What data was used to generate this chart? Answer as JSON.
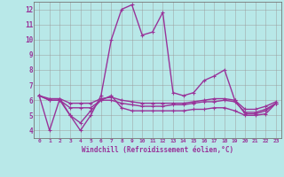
{
  "xlabel": "Windchill (Refroidissement éolien,°C)",
  "bg_color": "#b8e8e8",
  "line_color": "#993399",
  "xlim": [
    -0.5,
    23.5
  ],
  "ylim": [
    3.5,
    12.5
  ],
  "xticks": [
    0,
    1,
    2,
    3,
    4,
    5,
    6,
    7,
    8,
    9,
    10,
    11,
    12,
    13,
    14,
    15,
    16,
    17,
    18,
    19,
    20,
    21,
    22,
    23
  ],
  "yticks": [
    4,
    5,
    6,
    7,
    8,
    9,
    10,
    11,
    12
  ],
  "lines": [
    {
      "x": [
        0,
        1,
        2,
        3,
        4,
        5,
        6,
        7,
        8,
        9,
        10,
        11,
        12,
        13,
        14,
        15,
        16,
        17,
        18,
        19,
        20,
        21,
        22,
        23
      ],
      "y": [
        6.3,
        4.0,
        6.1,
        5.0,
        4.0,
        5.0,
        6.3,
        10.0,
        12.0,
        12.3,
        10.3,
        10.5,
        11.8,
        6.5,
        6.3,
        6.5,
        7.3,
        7.6,
        8.0,
        6.0,
        5.1,
        5.1,
        5.3,
        5.8
      ]
    },
    {
      "x": [
        0,
        1,
        2,
        3,
        4,
        5,
        6,
        7,
        8,
        9,
        10,
        11,
        12,
        13,
        14,
        15,
        16,
        17,
        18,
        19,
        20,
        21,
        22,
        23
      ],
      "y": [
        6.3,
        6.0,
        6.0,
        5.0,
        4.5,
        5.3,
        6.0,
        6.3,
        5.5,
        5.3,
        5.3,
        5.3,
        5.3,
        5.3,
        5.3,
        5.4,
        5.4,
        5.5,
        5.5,
        5.3,
        5.0,
        5.0,
        5.1,
        5.8
      ]
    },
    {
      "x": [
        0,
        1,
        2,
        3,
        4,
        5,
        6,
        7,
        8,
        9,
        10,
        11,
        12,
        13,
        14,
        15,
        16,
        17,
        18,
        19,
        20,
        21,
        22,
        23
      ],
      "y": [
        6.3,
        6.0,
        6.0,
        5.5,
        5.5,
        5.5,
        6.0,
        6.0,
        5.8,
        5.7,
        5.6,
        5.6,
        5.6,
        5.7,
        5.7,
        5.8,
        5.9,
        5.9,
        6.0,
        5.9,
        5.2,
        5.2,
        5.4,
        5.8
      ]
    },
    {
      "x": [
        0,
        1,
        2,
        3,
        4,
        5,
        6,
        7,
        8,
        9,
        10,
        11,
        12,
        13,
        14,
        15,
        16,
        17,
        18,
        19,
        20,
        21,
        22,
        23
      ],
      "y": [
        6.3,
        6.1,
        6.1,
        5.8,
        5.8,
        5.8,
        6.1,
        6.2,
        6.0,
        5.9,
        5.8,
        5.8,
        5.8,
        5.8,
        5.8,
        5.9,
        6.0,
        6.1,
        6.1,
        6.0,
        5.4,
        5.4,
        5.6,
        5.9
      ]
    }
  ]
}
